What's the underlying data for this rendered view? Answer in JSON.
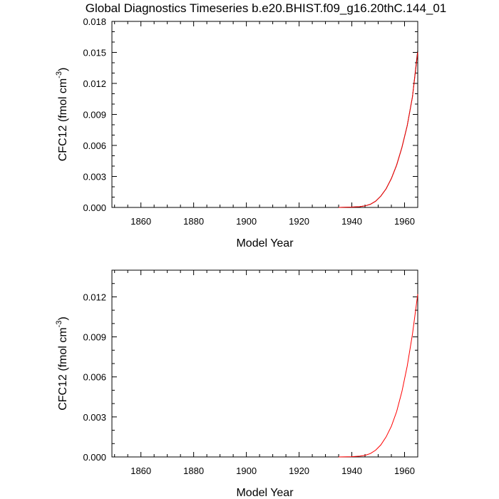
{
  "title": "Global Diagnostics Timeseries b.e20.BHIST.f09_g16.20thC.144_01",
  "chart_data": [
    {
      "type": "line",
      "xlabel": "Model Year",
      "ylabel_main": "CFC12 (fmol cm",
      "ylabel_sup": "-3",
      "ylabel_close": ")",
      "xlim": [
        1849,
        1965
      ],
      "ylim": [
        0,
        0.018
      ],
      "xticks": [
        1860,
        1880,
        1900,
        1920,
        1940,
        1960
      ],
      "xtick_labels": [
        "1860",
        "1880",
        "1900",
        "1920",
        "1940",
        "1960"
      ],
      "yticks": [
        0,
        0.003,
        0.006,
        0.009,
        0.012,
        0.015,
        0.018
      ],
      "ytick_labels": [
        "0.000",
        "0.003",
        "0.006",
        "0.009",
        "0.012",
        "0.015",
        "0.018"
      ],
      "series": [
        {
          "name": "black",
          "color": "#000000",
          "x": [
            1935,
            1940,
            1943,
            1945,
            1947,
            1949,
            1951,
            1953,
            1955,
            1957,
            1959,
            1961,
            1963,
            1965
          ],
          "y": [
            0,
            3e-05,
            8e-05,
            0.00015,
            0.0003,
            0.0006,
            0.0011,
            0.0018,
            0.0028,
            0.0041,
            0.0058,
            0.0079,
            0.0107,
            0.0152
          ]
        },
        {
          "name": "red",
          "color": "#ff0000",
          "x": [
            1935,
            1940,
            1943,
            1945,
            1947,
            1949,
            1951,
            1953,
            1955,
            1957,
            1959,
            1961,
            1963,
            1965
          ],
          "y": [
            0,
            3e-05,
            8e-05,
            0.00015,
            0.0003,
            0.0006,
            0.0011,
            0.0018,
            0.0028,
            0.0041,
            0.0058,
            0.0079,
            0.0107,
            0.015
          ]
        }
      ]
    },
    {
      "type": "line",
      "xlabel": "Model Year",
      "ylabel_main": "CFC12 (fmol cm",
      "ylabel_sup": "-3",
      "ylabel_close": ")",
      "xlim": [
        1849,
        1965
      ],
      "ylim": [
        0,
        0.014
      ],
      "xticks": [
        1860,
        1880,
        1900,
        1920,
        1940,
        1960
      ],
      "xtick_labels": [
        "1860",
        "1880",
        "1900",
        "1920",
        "1940",
        "1960"
      ],
      "yticks": [
        0,
        0.003,
        0.006,
        0.009,
        0.012
      ],
      "ytick_labels": [
        "0.000",
        "0.003",
        "0.006",
        "0.009",
        "0.012"
      ],
      "series": [
        {
          "name": "red",
          "color": "#ff0000",
          "x": [
            1935,
            1940,
            1943,
            1945,
            1947,
            1949,
            1951,
            1953,
            1955,
            1957,
            1959,
            1961,
            1963,
            1965
          ],
          "y": [
            0,
            2e-05,
            6e-05,
            0.00012,
            0.00025,
            0.0005,
            0.0009,
            0.0015,
            0.0023,
            0.0034,
            0.0049,
            0.0068,
            0.0092,
            0.0122
          ]
        }
      ]
    }
  ]
}
